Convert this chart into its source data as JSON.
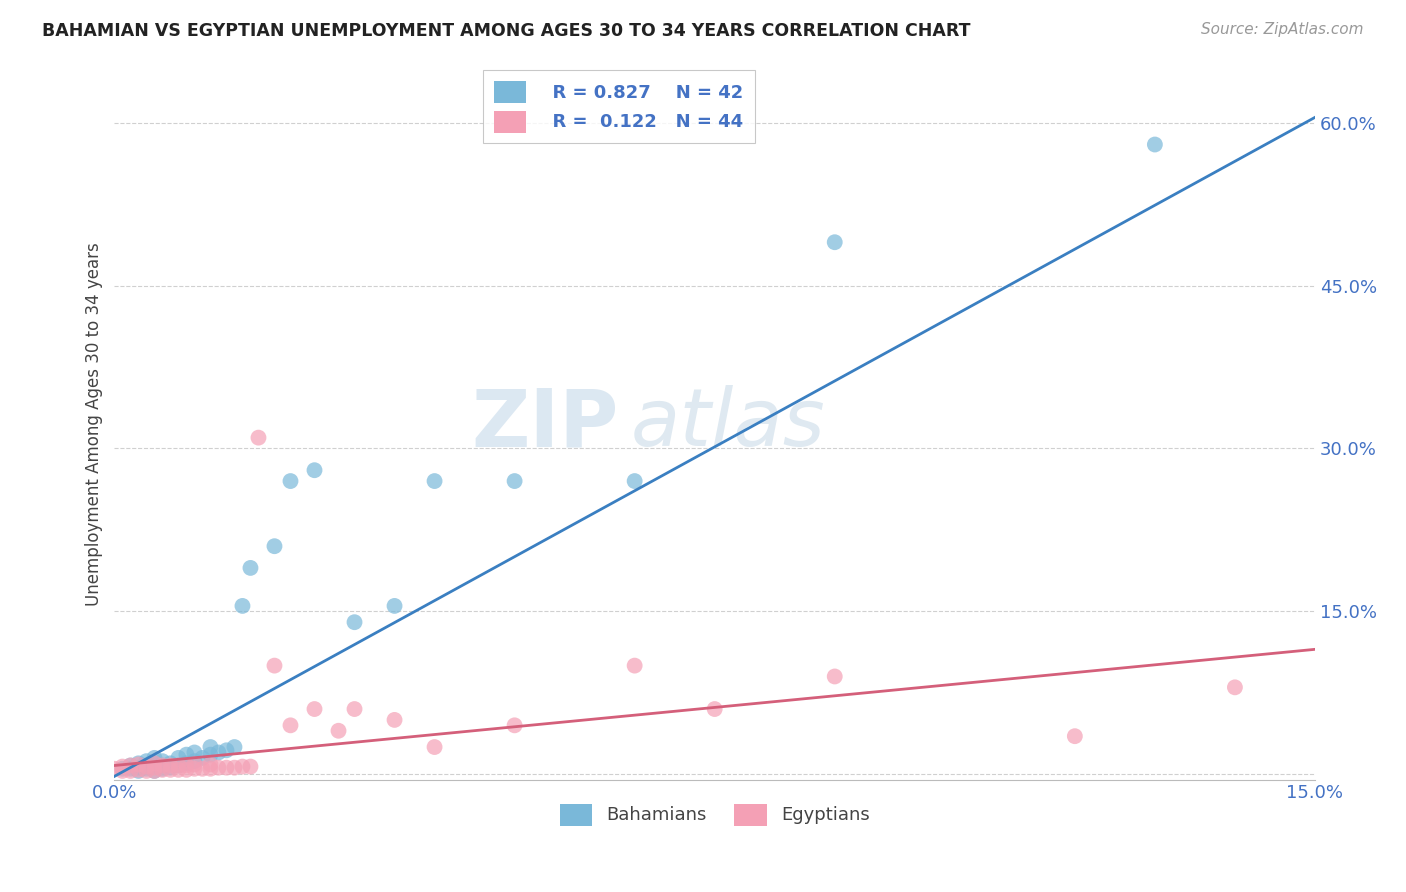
{
  "title": "BAHAMIAN VS EGYPTIAN UNEMPLOYMENT AMONG AGES 30 TO 34 YEARS CORRELATION CHART",
  "source": "Source: ZipAtlas.com",
  "ylabel": "Unemployment Among Ages 30 to 34 years",
  "xlim": [
    0.0,
    0.15
  ],
  "ylim": [
    -0.005,
    0.65
  ],
  "yticks": [
    0.0,
    0.15,
    0.3,
    0.45,
    0.6
  ],
  "ytick_labels": [
    "",
    "15.0%",
    "30.0%",
    "45.0%",
    "60.0%"
  ],
  "legend_r1": "R = 0.827",
  "legend_n1": "N = 42",
  "legend_r2": "R =  0.122",
  "legend_n2": "N = 44",
  "blue_color": "#7ab8d9",
  "pink_color": "#f4a0b5",
  "line_blue": "#3a7fc1",
  "line_pink": "#d45f7a",
  "watermark_zip": "ZIP",
  "watermark_atlas": "atlas",
  "background_color": "#ffffff",
  "grid_color": "#d0d0d0",
  "bahamian_x": [
    0.001,
    0.002,
    0.002,
    0.003,
    0.003,
    0.003,
    0.004,
    0.004,
    0.004,
    0.005,
    0.005,
    0.005,
    0.005,
    0.006,
    0.006,
    0.006,
    0.007,
    0.007,
    0.008,
    0.008,
    0.009,
    0.009,
    0.01,
    0.01,
    0.011,
    0.012,
    0.012,
    0.013,
    0.014,
    0.015,
    0.016,
    0.017,
    0.02,
    0.022,
    0.025,
    0.03,
    0.035,
    0.04,
    0.05,
    0.065,
    0.09,
    0.13
  ],
  "bahamian_y": [
    0.005,
    0.005,
    0.008,
    0.003,
    0.006,
    0.01,
    0.005,
    0.008,
    0.012,
    0.003,
    0.007,
    0.01,
    0.015,
    0.005,
    0.008,
    0.012,
    0.006,
    0.01,
    0.008,
    0.015,
    0.01,
    0.018,
    0.012,
    0.02,
    0.015,
    0.018,
    0.025,
    0.02,
    0.022,
    0.025,
    0.155,
    0.19,
    0.21,
    0.27,
    0.28,
    0.14,
    0.155,
    0.27,
    0.27,
    0.27,
    0.49,
    0.58
  ],
  "egyptian_x": [
    0.0,
    0.001,
    0.001,
    0.002,
    0.002,
    0.003,
    0.003,
    0.004,
    0.004,
    0.005,
    0.005,
    0.005,
    0.006,
    0.006,
    0.007,
    0.007,
    0.008,
    0.008,
    0.009,
    0.009,
    0.01,
    0.01,
    0.011,
    0.012,
    0.012,
    0.013,
    0.014,
    0.015,
    0.016,
    0.017,
    0.018,
    0.02,
    0.022,
    0.025,
    0.028,
    0.03,
    0.035,
    0.04,
    0.05,
    0.065,
    0.075,
    0.09,
    0.12,
    0.14
  ],
  "egyptian_y": [
    0.005,
    0.003,
    0.007,
    0.003,
    0.008,
    0.004,
    0.009,
    0.003,
    0.007,
    0.003,
    0.006,
    0.01,
    0.004,
    0.008,
    0.004,
    0.008,
    0.004,
    0.008,
    0.004,
    0.008,
    0.005,
    0.009,
    0.005,
    0.005,
    0.009,
    0.006,
    0.006,
    0.006,
    0.007,
    0.007,
    0.31,
    0.1,
    0.045,
    0.06,
    0.04,
    0.06,
    0.05,
    0.025,
    0.045,
    0.1,
    0.06,
    0.09,
    0.035,
    0.08
  ]
}
